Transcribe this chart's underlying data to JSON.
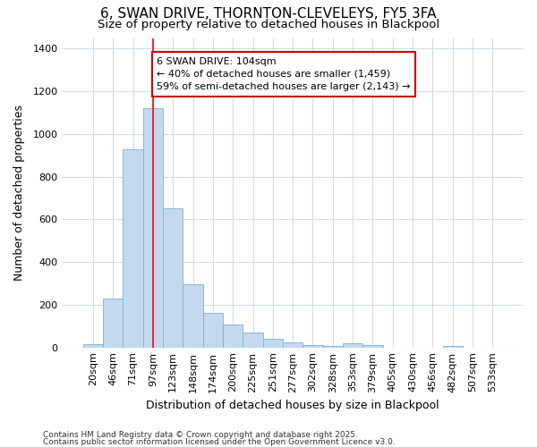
{
  "title_line1": "6, SWAN DRIVE, THORNTON-CLEVELEYS, FY5 3FA",
  "title_line2": "Size of property relative to detached houses in Blackpool",
  "xlabel": "Distribution of detached houses by size in Blackpool",
  "ylabel": "Number of detached properties",
  "bar_color": "#c5d9ee",
  "bar_edge_color": "#7aafd4",
  "background_color": "#ffffff",
  "grid_color": "#d0dce8",
  "categories": [
    "20sqm",
    "46sqm",
    "71sqm",
    "97sqm",
    "123sqm",
    "148sqm",
    "174sqm",
    "200sqm",
    "225sqm",
    "251sqm",
    "277sqm",
    "302sqm",
    "328sqm",
    "353sqm",
    "379sqm",
    "405sqm",
    "430sqm",
    "456sqm",
    "482sqm",
    "507sqm",
    "533sqm"
  ],
  "values": [
    15,
    230,
    930,
    1120,
    650,
    295,
    160,
    108,
    68,
    42,
    22,
    12,
    5,
    20,
    10,
    0,
    0,
    0,
    5,
    0,
    0
  ],
  "ylim": [
    0,
    1450
  ],
  "yticks": [
    0,
    200,
    400,
    600,
    800,
    1000,
    1200,
    1400
  ],
  "red_line_x": 3.0,
  "annotation_text": "6 SWAN DRIVE: 104sqm\n← 40% of detached houses are smaller (1,459)\n59% of semi-detached houses are larger (2,143) →",
  "annotation_box_color": "#ffffff",
  "annotation_box_edge": "#cc0000",
  "footnote_line1": "Contains HM Land Registry data © Crown copyright and database right 2025.",
  "footnote_line2": "Contains public sector information licensed under the Open Government Licence v3.0.",
  "title_fontsize": 11,
  "subtitle_fontsize": 9.5,
  "tick_fontsize": 8,
  "label_fontsize": 9,
  "annot_fontsize": 8
}
